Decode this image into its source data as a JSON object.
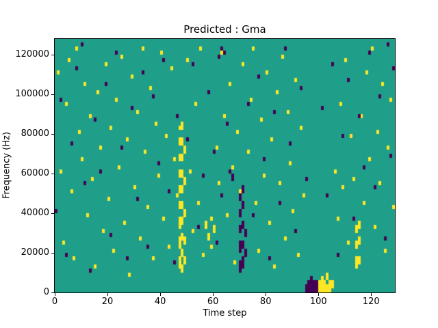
{
  "chart_data": {
    "type": "heatmap",
    "title": "Predicted : Gma",
    "xlabel": "Time step",
    "ylabel": "Frequency (Hz)",
    "xlim": [
      0,
      129
    ],
    "ylim": [
      0,
      128000
    ],
    "grid": {
      "time_steps": 129,
      "freq_bins": 64,
      "freq_step_hz": 2000
    },
    "legend": "none",
    "x_ticks": [
      {
        "v": 0,
        "label": "0"
      },
      {
        "v": 20,
        "label": "20"
      },
      {
        "v": 40,
        "label": "40"
      },
      {
        "v": 60,
        "label": "60"
      },
      {
        "v": 80,
        "label": "80"
      },
      {
        "v": 100,
        "label": "100"
      },
      {
        "v": 120,
        "label": "120"
      }
    ],
    "y_ticks": [
      {
        "v": 0,
        "label": "0"
      },
      {
        "v": 20000,
        "label": "20000"
      },
      {
        "v": 40000,
        "label": "40000"
      },
      {
        "v": 60000,
        "label": "60000"
      },
      {
        "v": 80000,
        "label": "80000"
      },
      {
        "v": 100000,
        "label": "100000"
      },
      {
        "v": 120000,
        "label": "120000"
      }
    ],
    "colors": {
      "background": "#1f9e89",
      "high": "#fde725",
      "low": "#440154"
    },
    "yellow_cells": [
      [
        1,
        55
      ],
      [
        2,
        30
      ],
      [
        3,
        12
      ],
      [
        4,
        47
      ],
      [
        5,
        58
      ],
      [
        6,
        25
      ],
      [
        7,
        8
      ],
      [
        8,
        61
      ],
      [
        9,
        40
      ],
      [
        10,
        33
      ],
      [
        11,
        52
      ],
      [
        12,
        19
      ],
      [
        13,
        44
      ],
      [
        14,
        28
      ],
      [
        15,
        6
      ],
      [
        16,
        50
      ],
      [
        17,
        36
      ],
      [
        18,
        15
      ],
      [
        19,
        57
      ],
      [
        20,
        23
      ],
      [
        21,
        41
      ],
      [
        22,
        10
      ],
      [
        23,
        48
      ],
      [
        24,
        31
      ],
      [
        25,
        59
      ],
      [
        26,
        17
      ],
      [
        27,
        38
      ],
      [
        28,
        4
      ],
      [
        29,
        54
      ],
      [
        30,
        26
      ],
      [
        31,
        45
      ],
      [
        32,
        13
      ],
      [
        33,
        61
      ],
      [
        34,
        35
      ],
      [
        35,
        21
      ],
      [
        36,
        51
      ],
      [
        37,
        8
      ],
      [
        38,
        42
      ],
      [
        39,
        29
      ],
      [
        40,
        60
      ],
      [
        41,
        18
      ],
      [
        42,
        39
      ],
      [
        43,
        11
      ],
      [
        44,
        56
      ],
      [
        45,
        33
      ],
      [
        46,
        24
      ],
      [
        47,
        6
      ],
      [
        47,
        7
      ],
      [
        47,
        8
      ],
      [
        47,
        11
      ],
      [
        47,
        12
      ],
      [
        47,
        13
      ],
      [
        47,
        16
      ],
      [
        47,
        17
      ],
      [
        47,
        18
      ],
      [
        47,
        21
      ],
      [
        47,
        22
      ],
      [
        47,
        25
      ],
      [
        47,
        26
      ],
      [
        47,
        29
      ],
      [
        47,
        30
      ],
      [
        47,
        33
      ],
      [
        47,
        34
      ],
      [
        47,
        37
      ],
      [
        47,
        38
      ],
      [
        47,
        41
      ],
      [
        48,
        5
      ],
      [
        48,
        6
      ],
      [
        48,
        9
      ],
      [
        48,
        10
      ],
      [
        48,
        13
      ],
      [
        48,
        14
      ],
      [
        48,
        17
      ],
      [
        48,
        18
      ],
      [
        48,
        21
      ],
      [
        48,
        22
      ],
      [
        48,
        25
      ],
      [
        48,
        26
      ],
      [
        48,
        29
      ],
      [
        48,
        30
      ],
      [
        48,
        33
      ],
      [
        48,
        34
      ],
      [
        48,
        37
      ],
      [
        48,
        38
      ],
      [
        48,
        41
      ],
      [
        48,
        42
      ],
      [
        49,
        7
      ],
      [
        49,
        8
      ],
      [
        49,
        12
      ],
      [
        49,
        13
      ],
      [
        49,
        19
      ],
      [
        49,
        20
      ],
      [
        49,
        27
      ],
      [
        49,
        28
      ],
      [
        49,
        35
      ],
      [
        49,
        36
      ],
      [
        50,
        58
      ],
      [
        51,
        30
      ],
      [
        52,
        15
      ],
      [
        53,
        47
      ],
      [
        54,
        22
      ],
      [
        55,
        61
      ],
      [
        56,
        9
      ],
      [
        57,
        16
      ],
      [
        57,
        17
      ],
      [
        58,
        13
      ],
      [
        58,
        14
      ],
      [
        59,
        11
      ],
      [
        59,
        18
      ],
      [
        60,
        15
      ],
      [
        60,
        16
      ],
      [
        61,
        36
      ],
      [
        62,
        27
      ],
      [
        63,
        60
      ],
      [
        64,
        44
      ],
      [
        65,
        19
      ],
      [
        66,
        52
      ],
      [
        67,
        31
      ],
      [
        68,
        7
      ],
      [
        69,
        40
      ],
      [
        70,
        25
      ],
      [
        71,
        57
      ],
      [
        72,
        14
      ],
      [
        73,
        35
      ],
      [
        74,
        48
      ],
      [
        75,
        61
      ],
      [
        76,
        22
      ],
      [
        77,
        10
      ],
      [
        78,
        43
      ],
      [
        79,
        29
      ],
      [
        80,
        55
      ],
      [
        81,
        17
      ],
      [
        82,
        38
      ],
      [
        83,
        6
      ],
      [
        84,
        50
      ],
      [
        85,
        27
      ],
      [
        86,
        59
      ],
      [
        87,
        13
      ],
      [
        88,
        45
      ],
      [
        89,
        32
      ],
      [
        90,
        20
      ],
      [
        91,
        53
      ],
      [
        92,
        9
      ],
      [
        93,
        41
      ],
      [
        94,
        24
      ],
      [
        100,
        0
      ],
      [
        100,
        1
      ],
      [
        100,
        2
      ],
      [
        101,
        0
      ],
      [
        101,
        1
      ],
      [
        101,
        2
      ],
      [
        101,
        3
      ],
      [
        102,
        0
      ],
      [
        102,
        1
      ],
      [
        102,
        2
      ],
      [
        103,
        0
      ],
      [
        103,
        1
      ],
      [
        103,
        3
      ],
      [
        103,
        4
      ],
      [
        104,
        0
      ],
      [
        104,
        1
      ],
      [
        104,
        2
      ],
      [
        105,
        1
      ],
      [
        105,
        2
      ],
      [
        106,
        30
      ],
      [
        107,
        18
      ],
      [
        108,
        47
      ],
      [
        109,
        26
      ],
      [
        110,
        58
      ],
      [
        111,
        12
      ],
      [
        112,
        39
      ],
      [
        113,
        28
      ],
      [
        114,
        6
      ],
      [
        114,
        7
      ],
      [
        114,
        8
      ],
      [
        114,
        11
      ],
      [
        114,
        12
      ],
      [
        114,
        15
      ],
      [
        114,
        16
      ],
      [
        115,
        7
      ],
      [
        115,
        8
      ],
      [
        115,
        12
      ],
      [
        115,
        13
      ],
      [
        115,
        16
      ],
      [
        115,
        17
      ],
      [
        116,
        44
      ],
      [
        117,
        22
      ],
      [
        118,
        55
      ],
      [
        119,
        33
      ],
      [
        120,
        61
      ],
      [
        121,
        16
      ],
      [
        122,
        40
      ],
      [
        123,
        27
      ],
      [
        124,
        52
      ],
      [
        125,
        10
      ],
      [
        126,
        36
      ],
      [
        127,
        48
      ],
      [
        128,
        21
      ]
    ],
    "purple_cells": [
      [
        0,
        20
      ],
      [
        2,
        48
      ],
      [
        4,
        9
      ],
      [
        6,
        37
      ],
      [
        8,
        56
      ],
      [
        10,
        62
      ],
      [
        11,
        27
      ],
      [
        13,
        5
      ],
      [
        15,
        43
      ],
      [
        17,
        30
      ],
      [
        19,
        52
      ],
      [
        21,
        14
      ],
      [
        23,
        60
      ],
      [
        25,
        36
      ],
      [
        27,
        8
      ],
      [
        29,
        46
      ],
      [
        31,
        23
      ],
      [
        33,
        55
      ],
      [
        35,
        11
      ],
      [
        37,
        49
      ],
      [
        39,
        32
      ],
      [
        41,
        58
      ],
      [
        43,
        25
      ],
      [
        45,
        7
      ],
      [
        46,
        44
      ],
      [
        50,
        38
      ],
      [
        52,
        57
      ],
      [
        54,
        16
      ],
      [
        56,
        29
      ],
      [
        58,
        50
      ],
      [
        60,
        35
      ],
      [
        61,
        12
      ],
      [
        62,
        59
      ],
      [
        63,
        61
      ],
      [
        64,
        60
      ],
      [
        63,
        24
      ],
      [
        65,
        42
      ],
      [
        66,
        30
      ],
      [
        67,
        28
      ],
      [
        67,
        29
      ],
      [
        70,
        5
      ],
      [
        70,
        6
      ],
      [
        70,
        7
      ],
      [
        70,
        10
      ],
      [
        70,
        11
      ],
      [
        70,
        12
      ],
      [
        70,
        15
      ],
      [
        70,
        16
      ],
      [
        70,
        19
      ],
      [
        70,
        20
      ],
      [
        70,
        23
      ],
      [
        70,
        24
      ],
      [
        71,
        6
      ],
      [
        71,
        7
      ],
      [
        71,
        8
      ],
      [
        71,
        11
      ],
      [
        71,
        12
      ],
      [
        71,
        16
      ],
      [
        71,
        17
      ],
      [
        71,
        21
      ],
      [
        71,
        22
      ],
      [
        71,
        25
      ],
      [
        71,
        26
      ],
      [
        72,
        9
      ],
      [
        72,
        10
      ],
      [
        72,
        14
      ],
      [
        72,
        15
      ],
      [
        73,
        47
      ],
      [
        75,
        19
      ],
      [
        77,
        54
      ],
      [
        79,
        33
      ],
      [
        81,
        8
      ],
      [
        83,
        45
      ],
      [
        85,
        22
      ],
      [
        87,
        61
      ],
      [
        89,
        37
      ],
      [
        91,
        15
      ],
      [
        93,
        51
      ],
      [
        95,
        28
      ],
      [
        95,
        0
      ],
      [
        95,
        1
      ],
      [
        96,
        0
      ],
      [
        96,
        1
      ],
      [
        96,
        2
      ],
      [
        97,
        0
      ],
      [
        97,
        1
      ],
      [
        97,
        2
      ],
      [
        97,
        3
      ],
      [
        98,
        0
      ],
      [
        98,
        1
      ],
      [
        98,
        2
      ],
      [
        99,
        0
      ],
      [
        99,
        1
      ],
      [
        99,
        2
      ],
      [
        101,
        46
      ],
      [
        103,
        24
      ],
      [
        105,
        57
      ],
      [
        107,
        9
      ],
      [
        109,
        39
      ],
      [
        111,
        53
      ],
      [
        113,
        18
      ],
      [
        115,
        44
      ],
      [
        117,
        31
      ],
      [
        119,
        60
      ],
      [
        121,
        26
      ],
      [
        123,
        49
      ],
      [
        125,
        13
      ],
      [
        126,
        62
      ],
      [
        127,
        34
      ],
      [
        128,
        56
      ]
    ]
  }
}
